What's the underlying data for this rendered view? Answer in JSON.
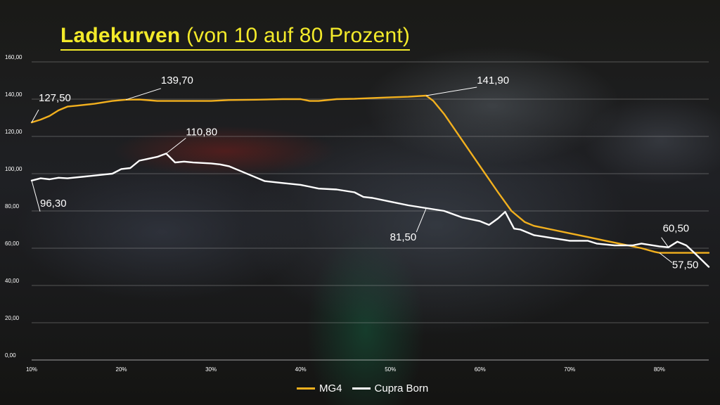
{
  "title_main": "Ladekurven",
  "title_sub": "(von 10 auf 80 Prozent)",
  "chart_data": {
    "type": "line",
    "title": "Ladekurven (von 10 auf 80 Prozent)",
    "xlabel": "",
    "ylabel": "",
    "x_tick_labels": [
      "10%",
      "20%",
      "30%",
      "40%",
      "50%",
      "60%",
      "70%",
      "80%"
    ],
    "y_tick_labels": [
      "0,00",
      "20,00",
      "40,00",
      "60,00",
      "80,00",
      "100,00",
      "120,00",
      "140,00",
      "160,00"
    ],
    "xlim": [
      10,
      85.5
    ],
    "ylim": [
      0,
      160
    ],
    "grid": true,
    "legend_position": "bottom-center",
    "series": [
      {
        "name": "MG4",
        "color": "#f2b01e",
        "points": [
          [
            10,
            127.5
          ],
          [
            11,
            129
          ],
          [
            12,
            131
          ],
          [
            13,
            134
          ],
          [
            14,
            136
          ],
          [
            15,
            136.5
          ],
          [
            17,
            137.5
          ],
          [
            19,
            139
          ],
          [
            20.5,
            139.7
          ],
          [
            22,
            139.8
          ],
          [
            24,
            139
          ],
          [
            26,
            139
          ],
          [
            28,
            139
          ],
          [
            30,
            139
          ],
          [
            32,
            139.5
          ],
          [
            35,
            139.7
          ],
          [
            38,
            140
          ],
          [
            40,
            140
          ],
          [
            41,
            139
          ],
          [
            42,
            139
          ],
          [
            44,
            140
          ],
          [
            46,
            140.2
          ],
          [
            48,
            140.6
          ],
          [
            50,
            141
          ],
          [
            52,
            141.3
          ],
          [
            54,
            141.9
          ],
          [
            54.8,
            139
          ],
          [
            56,
            132
          ],
          [
            58,
            118
          ],
          [
            60,
            104
          ],
          [
            62,
            90
          ],
          [
            63.5,
            80
          ],
          [
            65,
            74
          ],
          [
            66,
            72
          ],
          [
            68,
            70
          ],
          [
            70,
            68
          ],
          [
            72,
            66
          ],
          [
            74,
            64
          ],
          [
            76,
            62
          ],
          [
            78,
            60
          ],
          [
            79.5,
            58
          ],
          [
            80,
            57.5
          ],
          [
            82,
            57.5
          ],
          [
            84,
            57.5
          ],
          [
            85.5,
            57.5
          ]
        ]
      },
      {
        "name": "Cupra Born",
        "color": "#ffffff",
        "points": [
          [
            10,
            96.3
          ],
          [
            11,
            97.5
          ],
          [
            12,
            97
          ],
          [
            13,
            97.8
          ],
          [
            14,
            97.5
          ],
          [
            16,
            98.5
          ],
          [
            18,
            99.5
          ],
          [
            19,
            100
          ],
          [
            20,
            102.5
          ],
          [
            21,
            103
          ],
          [
            22,
            107
          ],
          [
            23,
            108
          ],
          [
            24,
            109
          ],
          [
            25,
            110.8
          ],
          [
            26,
            106
          ],
          [
            27,
            106.5
          ],
          [
            28,
            106
          ],
          [
            30,
            105.5
          ],
          [
            31,
            105
          ],
          [
            32,
            104
          ],
          [
            33,
            102
          ],
          [
            35,
            98
          ],
          [
            36,
            96
          ],
          [
            38,
            95
          ],
          [
            40,
            94
          ],
          [
            41,
            93
          ],
          [
            42,
            92
          ],
          [
            44,
            91.5
          ],
          [
            46,
            90
          ],
          [
            47,
            87.5
          ],
          [
            48,
            87
          ],
          [
            50,
            85
          ],
          [
            52,
            83
          ],
          [
            54,
            81.5
          ],
          [
            56,
            80
          ],
          [
            58,
            76.5
          ],
          [
            60,
            74.5
          ],
          [
            61,
            72.5
          ],
          [
            62,
            76
          ],
          [
            62.8,
            79.5
          ],
          [
            63.8,
            70.5
          ],
          [
            64.5,
            70
          ],
          [
            66,
            67
          ],
          [
            68,
            65.5
          ],
          [
            70,
            64
          ],
          [
            72,
            64
          ],
          [
            73,
            62.5
          ],
          [
            75,
            61.5
          ],
          [
            77,
            61.5
          ],
          [
            78,
            62.5
          ],
          [
            80,
            61
          ],
          [
            81,
            60.5
          ],
          [
            82,
            63.5
          ],
          [
            83,
            61.5
          ],
          [
            84,
            57
          ],
          [
            85.5,
            50
          ]
        ]
      }
    ],
    "annotations": [
      {
        "text": "127,50",
        "series": "MG4",
        "x": 10,
        "y": 127.5
      },
      {
        "text": "139,70",
        "series": "MG4",
        "x": 20.5,
        "y": 139.7
      },
      {
        "text": "141,90",
        "series": "MG4",
        "x": 54,
        "y": 141.9
      },
      {
        "text": "57,50",
        "series": "MG4",
        "x": 80,
        "y": 57.5
      },
      {
        "text": "96,30",
        "series": "Cupra Born",
        "x": 10,
        "y": 96.3
      },
      {
        "text": "110,80",
        "series": "Cupra Born",
        "x": 25,
        "y": 110.8
      },
      {
        "text": "81,50",
        "series": "Cupra Born",
        "x": 54,
        "y": 81.5
      },
      {
        "text": "60,50",
        "series": "Cupra Born",
        "x": 81,
        "y": 60.5
      }
    ]
  }
}
